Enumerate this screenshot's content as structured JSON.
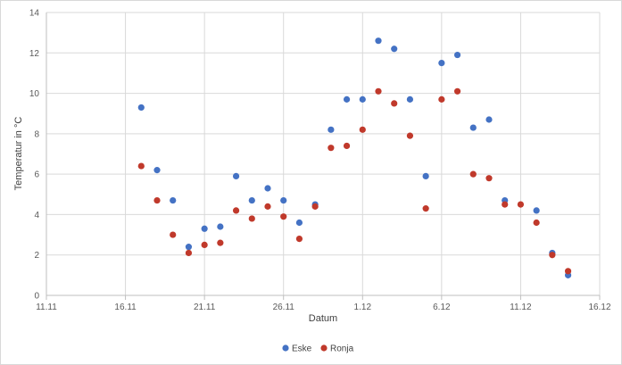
{
  "chart_data": {
    "type": "scatter",
    "title": "",
    "xlabel": "Datum",
    "ylabel": "Temperatur in °C",
    "x_tick_labels": [
      "11.11",
      "16.11",
      "21.11",
      "26.11",
      "1.12",
      "6.12",
      "11.12",
      "16.12"
    ],
    "x_ticks": [
      "2023-11-11",
      "2023-11-16",
      "2023-11-21",
      "2023-11-26",
      "2023-12-01",
      "2023-12-06",
      "2023-12-11",
      "2023-12-16"
    ],
    "xlim": [
      "2023-11-11",
      "2023-12-16"
    ],
    "ylim": [
      0,
      14
    ],
    "y_ticks": [
      0,
      2,
      4,
      6,
      8,
      10,
      12,
      14
    ],
    "grid": true,
    "legend_position": "bottom",
    "series": [
      {
        "name": "Eske",
        "color": "#4472c4",
        "points": [
          {
            "x": "2023-11-17",
            "y": 9.3
          },
          {
            "x": "2023-11-18",
            "y": 6.2
          },
          {
            "x": "2023-11-19",
            "y": 4.7
          },
          {
            "x": "2023-11-20",
            "y": 2.4
          },
          {
            "x": "2023-11-21",
            "y": 3.3
          },
          {
            "x": "2023-11-22",
            "y": 3.4
          },
          {
            "x": "2023-11-23",
            "y": 5.9
          },
          {
            "x": "2023-11-24",
            "y": 4.7
          },
          {
            "x": "2023-11-25",
            "y": 5.3
          },
          {
            "x": "2023-11-26",
            "y": 4.7
          },
          {
            "x": "2023-11-27",
            "y": 3.6
          },
          {
            "x": "2023-11-28",
            "y": 4.5
          },
          {
            "x": "2023-11-29",
            "y": 8.2
          },
          {
            "x": "2023-11-30",
            "y": 9.7
          },
          {
            "x": "2023-12-01",
            "y": 9.7
          },
          {
            "x": "2023-12-02",
            "y": 12.6
          },
          {
            "x": "2023-12-03",
            "y": 12.2
          },
          {
            "x": "2023-12-04",
            "y": 9.7
          },
          {
            "x": "2023-12-05",
            "y": 5.9
          },
          {
            "x": "2023-12-06",
            "y": 11.5
          },
          {
            "x": "2023-12-07",
            "y": 11.9
          },
          {
            "x": "2023-12-08",
            "y": 8.3
          },
          {
            "x": "2023-12-09",
            "y": 8.7
          },
          {
            "x": "2023-12-10",
            "y": 4.7
          },
          {
            "x": "2023-12-12",
            "y": 4.2
          },
          {
            "x": "2023-12-13",
            "y": 2.1
          },
          {
            "x": "2023-12-14",
            "y": 1.0
          }
        ]
      },
      {
        "name": "Ronja",
        "color": "#c0392b",
        "points": [
          {
            "x": "2023-11-17",
            "y": 6.4
          },
          {
            "x": "2023-11-18",
            "y": 4.7
          },
          {
            "x": "2023-11-19",
            "y": 3.0
          },
          {
            "x": "2023-11-20",
            "y": 2.1
          },
          {
            "x": "2023-11-21",
            "y": 2.5
          },
          {
            "x": "2023-11-22",
            "y": 2.6
          },
          {
            "x": "2023-11-23",
            "y": 4.2
          },
          {
            "x": "2023-11-24",
            "y": 3.8
          },
          {
            "x": "2023-11-25",
            "y": 4.4
          },
          {
            "x": "2023-11-26",
            "y": 3.9
          },
          {
            "x": "2023-11-27",
            "y": 2.8
          },
          {
            "x": "2023-11-28",
            "y": 4.4
          },
          {
            "x": "2023-11-29",
            "y": 7.3
          },
          {
            "x": "2023-11-30",
            "y": 7.4
          },
          {
            "x": "2023-12-01",
            "y": 8.2
          },
          {
            "x": "2023-12-02",
            "y": 10.1
          },
          {
            "x": "2023-12-03",
            "y": 9.5
          },
          {
            "x": "2023-12-04",
            "y": 7.9
          },
          {
            "x": "2023-12-05",
            "y": 4.3
          },
          {
            "x": "2023-12-06",
            "y": 9.7
          },
          {
            "x": "2023-12-07",
            "y": 10.1
          },
          {
            "x": "2023-12-08",
            "y": 6.0
          },
          {
            "x": "2023-12-09",
            "y": 5.8
          },
          {
            "x": "2023-12-10",
            "y": 4.5
          },
          {
            "x": "2023-12-11",
            "y": 4.5
          },
          {
            "x": "2023-12-12",
            "y": 3.6
          },
          {
            "x": "2023-12-13",
            "y": 2.0
          },
          {
            "x": "2023-12-14",
            "y": 1.2
          }
        ]
      }
    ]
  }
}
